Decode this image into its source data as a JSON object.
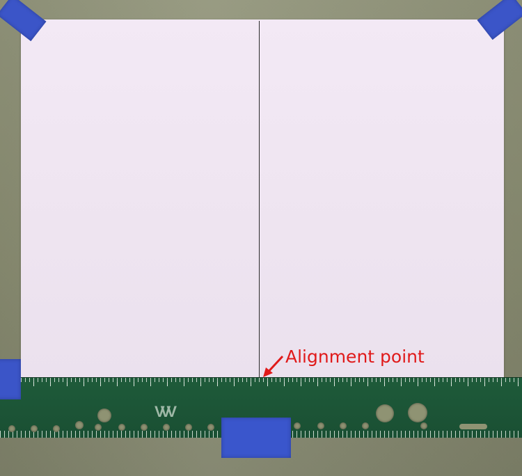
{
  "photo": {
    "description_colors": {
      "paper": "#efe5f1",
      "tape": "#3b55c8",
      "ruler": "#1e5b3a",
      "annotation": "#e01a1a"
    }
  },
  "annotation": {
    "label": "Alignment point"
  },
  "icons": {
    "arrow": "arrow-icon"
  }
}
